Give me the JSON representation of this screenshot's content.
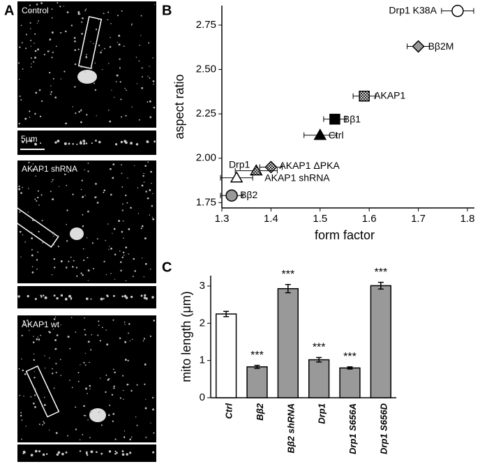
{
  "panel_labels": [
    "A",
    "B",
    "C"
  ],
  "micrographs": [
    {
      "label": "Control"
    },
    {
      "label": "AKAP1 shRNA"
    },
    {
      "label": "AKAP1 wt"
    }
  ],
  "scale_bar": "5μm",
  "chart_data": [
    {
      "type": "scatter",
      "xlabel": "form factor",
      "ylabel": "aspect ratio",
      "xlim": [
        1.3,
        1.8
      ],
      "xticks": [
        1.3,
        1.4,
        1.5,
        1.6,
        1.7,
        1.8
      ],
      "ylim": [
        1.72,
        2.86
      ],
      "yticks": [
        1.75,
        {
          "value": 2,
          "label": "2.00"
        },
        2.25,
        {
          "value": 2.5,
          "label": "2.50"
        },
        2.75
      ],
      "series": [
        {
          "name": "Drp1 K38A",
          "color": "#ffffff",
          "marker": "circle",
          "hatch": false,
          "x": [
            1.78
          ],
          "y": [
            2.83
          ],
          "xerr": [
            0.02
          ]
        },
        {
          "name": "Bβ2M",
          "color": "#999999",
          "marker": "diamond",
          "hatch": false,
          "x": [
            1.7
          ],
          "y": [
            2.63
          ],
          "xerr": [
            0.01
          ]
        },
        {
          "name": "AKAP1",
          "color": "#ffffff",
          "marker": "square",
          "hatch": true,
          "x": [
            1.59
          ],
          "y": [
            2.35
          ],
          "xerr": [
            0.01
          ]
        },
        {
          "name": "Bβ1",
          "color": "#000000",
          "marker": "square",
          "hatch": false,
          "x": [
            1.53
          ],
          "y": [
            2.22
          ],
          "xerr": [
            0.01
          ]
        },
        {
          "name": "Ctrl",
          "color": "#000000",
          "marker": "triangle",
          "hatch": false,
          "x": [
            1.5
          ],
          "y": [
            2.13
          ],
          "xerr": [
            0.02
          ]
        },
        {
          "name": "AKAP1 ΔPKA",
          "color": "#ffffff",
          "marker": "diamond",
          "hatch": true,
          "x": [
            1.4
          ],
          "y": [
            1.95
          ],
          "xerr": [
            0.01
          ]
        },
        {
          "name": "AKAP1 shRNA",
          "color": "#ffffff",
          "marker": "triangle",
          "hatch": true,
          "x": [
            1.37
          ],
          "y": [
            1.93
          ],
          "xerr": [
            0.03
          ]
        },
        {
          "name": "Drp1",
          "color": "#ffffff",
          "marker": "triangle",
          "hatch": false,
          "x": [
            1.33
          ],
          "y": [
            1.89
          ],
          "xerr": [
            0.02
          ]
        },
        {
          "name": "Bβ2",
          "color": "#999999",
          "marker": "circle",
          "hatch": false,
          "x": [
            1.32
          ],
          "y": [
            1.79
          ],
          "xerr": [
            0.01
          ]
        }
      ]
    },
    {
      "type": "bar",
      "ylabel": "mito length (μm)",
      "categories": [
        "Ctrl",
        "Bβ2",
        "Bβ2 shRNA",
        "Drp1",
        "Drp1 S656A",
        "Drp1 S656D"
      ],
      "values": [
        2.25,
        0.83,
        2.93,
        1.02,
        0.8,
        3.01
      ],
      "errors": [
        0.07,
        0.04,
        0.11,
        0.06,
        0.03,
        0.09
      ],
      "colors": [
        "#ffffff",
        "#999999",
        "#999999",
        "#999999",
        "#999999",
        "#999999"
      ],
      "annotations": [
        null,
        "***",
        "***",
        "***",
        "***",
        "***"
      ],
      "ylim": [
        0,
        3.28
      ],
      "yticks": [
        0,
        1,
        2,
        3
      ]
    }
  ]
}
